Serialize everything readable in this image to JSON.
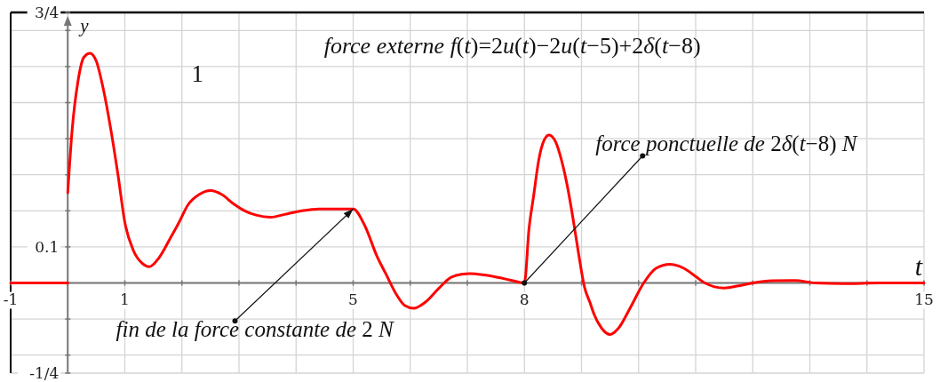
{
  "chart_data": {
    "type": "line",
    "title": "force externe f(t)=2u(t)−2u(t−5)+2δ(t−8)",
    "xlabel": "t",
    "ylabel": "y",
    "xlim": [
      -1,
      15
    ],
    "ylim": [
      -0.25,
      0.75
    ],
    "xticks": [
      -1,
      {
        "value": 0,
        "label": null
      },
      1,
      {
        "value": 2,
        "label": null
      },
      {
        "value": 3,
        "label": null
      },
      {
        "value": 4,
        "label": null
      },
      5,
      {
        "value": 6,
        "label": null
      },
      {
        "value": 7,
        "label": null
      },
      8,
      {
        "value": 9,
        "label": null
      },
      {
        "value": 10,
        "label": null
      },
      {
        "value": 11,
        "label": null
      },
      {
        "value": 12,
        "label": null
      },
      {
        "value": 13,
        "label": null
      },
      {
        "value": 14,
        "label": null
      },
      15
    ],
    "yticks": [
      {
        "value": -0.25,
        "label": "-1/4"
      },
      {
        "value": -0.2,
        "label": null
      },
      {
        "value": -0.1,
        "label": null
      },
      {
        "value": 0,
        "label": null
      },
      0.1,
      {
        "value": 0.2,
        "label": null
      },
      {
        "value": 0.3,
        "label": null
      },
      {
        "value": 0.4,
        "label": null
      },
      {
        "value": 0.5,
        "label": null
      },
      {
        "value": 0.6,
        "label": null
      },
      {
        "value": 0.7,
        "label": null
      },
      {
        "value": 0.75,
        "label": "3/4"
      }
    ],
    "grid": true,
    "series": [
      {
        "color": "#ff0000",
        "x": [
          -1,
          0
        ],
        "values": [
          0,
          0
        ]
      },
      {
        "color": "#ff0000",
        "x": [
          0,
          0.08,
          0.18,
          0.28,
          0.39,
          0.5,
          0.62,
          0.75,
          0.88,
          1,
          1.15,
          1.3,
          1.43,
          1.6,
          1.8,
          1.95,
          2.1,
          2.3,
          2.5,
          2.7,
          2.9,
          3.1,
          3.3,
          3.55,
          3.8,
          4.1,
          4.4,
          4.8,
          5,
          5.2,
          5.42,
          5.57,
          5.75,
          5.9,
          6.06,
          6.25,
          6.5,
          6.7,
          6.9,
          7.05,
          7.3,
          7.46,
          7.75,
          8,
          8.08,
          8.16,
          8.25,
          8.33,
          8.43,
          8.55,
          8.65,
          8.75,
          8.85,
          8.95,
          9.05,
          9.15,
          9.22,
          9.35,
          9.5,
          9.65,
          9.85,
          10.09,
          10.3,
          10.55,
          10.8,
          11,
          11.16,
          11.5,
          11.75,
          12,
          12.35,
          12.73,
          13.1,
          13.6,
          14.2,
          15
        ],
        "values": [
          0.25,
          0.43,
          0.56,
          0.625,
          0.637,
          0.615,
          0.54,
          0.43,
          0.3,
          0.168,
          0.09,
          0.055,
          0.045,
          0.07,
          0.125,
          0.168,
          0.215,
          0.245,
          0.256,
          0.245,
          0.22,
          0.2,
          0.188,
          0.182,
          0.19,
          0.2,
          0.205,
          0.205,
          0.205,
          0.16,
          0.073,
          0.026,
          -0.03,
          -0.062,
          -0.07,
          -0.055,
          -0.015,
          0.014,
          0.024,
          0.026,
          0.022,
          0.018,
          0.008,
          0,
          0.15,
          0.24,
          0.34,
          0.39,
          0.41,
          0.39,
          0.34,
          0.27,
          0.18,
          0.08,
          -0.01,
          -0.055,
          -0.087,
          -0.125,
          -0.143,
          -0.125,
          -0.07,
          0,
          0.04,
          0.052,
          0.04,
          0.018,
          0,
          -0.014,
          -0.008,
          0,
          0.006,
          0.007,
          0,
          -0.002,
          0,
          0
        ]
      }
    ],
    "annotations": [
      "1",
      {
        "text": "force ponctuelle de 2δ(t−8) N",
        "x": 8,
        "y": 0
      },
      {
        "text": "fin de la force constante de 2 N",
        "x": 5,
        "y": 0.205
      }
    ]
  }
}
